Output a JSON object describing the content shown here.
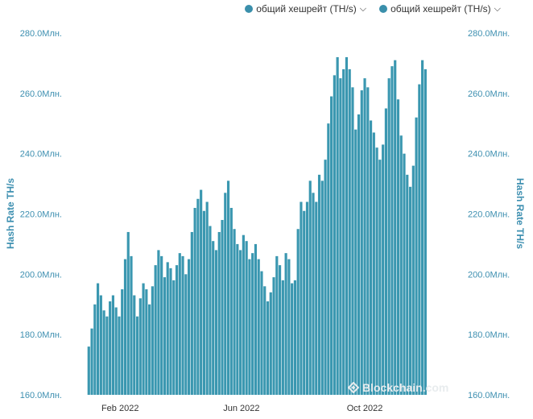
{
  "legend": {
    "items": [
      {
        "label": "общий хешрейт (TH/s)",
        "color": "#3a8fab",
        "icon": "chevron-down-icon"
      },
      {
        "label": "общий хешрейт (TH/s)",
        "color": "#3a8fab",
        "icon": "chevron-down-icon"
      }
    ]
  },
  "watermark": {
    "text": "Blockchain.com",
    "icon": "blockchain-logo-icon"
  },
  "chart_data": {
    "type": "bar",
    "ylabel": "Hash Rate TH/s",
    "ylabel_right": "Hash Rate TH/s",
    "ylim": [
      160,
      280
    ],
    "yticks": [
      160,
      180,
      200,
      220,
      240,
      260,
      280
    ],
    "ytick_labels": [
      "160.0Млн.",
      "180.0Млн.",
      "200.0Млн.",
      "220.0Млн.",
      "240.0Млн.",
      "260.0Млн.",
      "280.0Млн."
    ],
    "xlim": [
      "2021-12-27",
      "2022-12-22"
    ],
    "xticks": [
      {
        "date": "2022-02-01",
        "label": "Feb 2022"
      },
      {
        "date": "2022-06-01",
        "label": "Jun 2022"
      },
      {
        "date": "2022-10-01",
        "label": "Oct 2022"
      }
    ],
    "bar_color": "#3a97b0",
    "grid": false,
    "series": [
      {
        "name": "общий хешрейт (TH/s)",
        "dates_start": "2022-01-01",
        "date_step_days": 3,
        "values": [
          176,
          182,
          190,
          197,
          193,
          188,
          186,
          191,
          193,
          189,
          186,
          195,
          205,
          214,
          206,
          193,
          186,
          192,
          197,
          195,
          190,
          196,
          203,
          208,
          206,
          199,
          204,
          202,
          198,
          203,
          207,
          206,
          200,
          205,
          214,
          222,
          225,
          228,
          221,
          224,
          216,
          211,
          208,
          214,
          218,
          227,
          231,
          222,
          215,
          210,
          208,
          213,
          211,
          205,
          207,
          210,
          205,
          201,
          196,
          191,
          194,
          199,
          206,
          203,
          198,
          207,
          205,
          197,
          198,
          215,
          224,
          221,
          224,
          231,
          227,
          224,
          233,
          231,
          238,
          250,
          259,
          266,
          272,
          265,
          268,
          272,
          268,
          262,
          248,
          253,
          261,
          265,
          262,
          251,
          247,
          242,
          238,
          243,
          255,
          265,
          269,
          271,
          258,
          246,
          240,
          233,
          229,
          236,
          252,
          263,
          271,
          268
        ]
      }
    ]
  }
}
